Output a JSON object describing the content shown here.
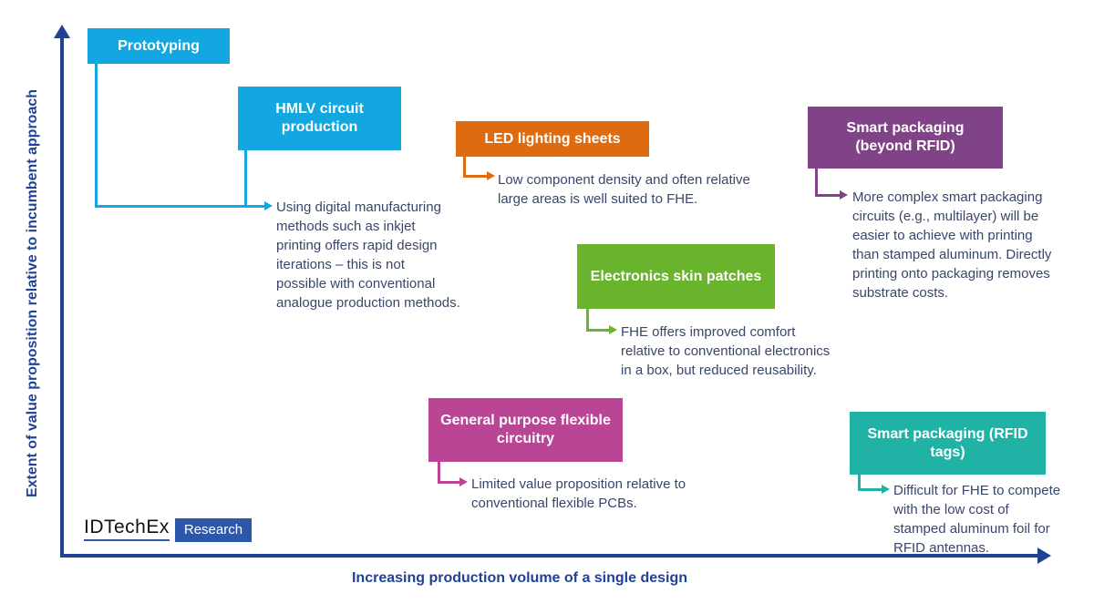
{
  "palette": {
    "cyan": "#12a7e0",
    "orange": "#de6b10",
    "purple": "#814388",
    "green": "#69b42c",
    "magenta": "#ba4595",
    "teal": "#20b3a5",
    "navy": "#1f4296",
    "note_text": "#39466b",
    "logo_blue": "#2d57a9"
  },
  "axes": {
    "y_label": "Extent of value proposition relative to incumbent approach",
    "x_label": "Increasing production volume of a single design"
  },
  "boxes": {
    "prototyping": {
      "label": "Prototyping",
      "color": "#12a7e0"
    },
    "hmlv": {
      "label": "HMLV circuit\nproduction",
      "color": "#12a7e0"
    },
    "led": {
      "label": "LED lighting sheets",
      "color": "#de6b10"
    },
    "smart_beyond_rfid": {
      "label": "Smart packaging\n(beyond RFID)",
      "color": "#814388"
    },
    "skin_patches": {
      "label": "Electronics skin patches",
      "color": "#69b42c"
    },
    "flex_circuitry": {
      "label": "General purpose flexible\ncircuitry",
      "color": "#ba4595"
    },
    "smart_rfid_tags": {
      "label": "Smart packaging (RFID\ntags)",
      "color": "#20b3a5"
    }
  },
  "notes": {
    "digital_manufacturing": "Using digital manufacturing\nmethods such as inkjet\nprinting offers rapid design\niterations – this is not\npossible with conventional\nanalogue production methods.",
    "led": "Low component density and often relative\nlarge areas is well suited to FHE.",
    "smart_beyond_rfid": "More complex smart packaging\ncircuits (e.g., multilayer) will be\neasier to achieve with printing\nthan stamped aluminum. Directly\nprinting onto packaging removes\nsubstrate costs.",
    "skin_patches": "FHE offers improved comfort\nrelative to conventional electronics\nin a box, but reduced reusability.",
    "flex_circuitry": "Limited value proposition relative to\nconventional flexible PCBs.",
    "smart_rfid_tags": "Difficult for FHE to compete\nwith the low cost of\nstamped aluminum foil for\nRFID antennas."
  },
  "logo": {
    "brand": "IDTechEx",
    "badge": "Research"
  }
}
